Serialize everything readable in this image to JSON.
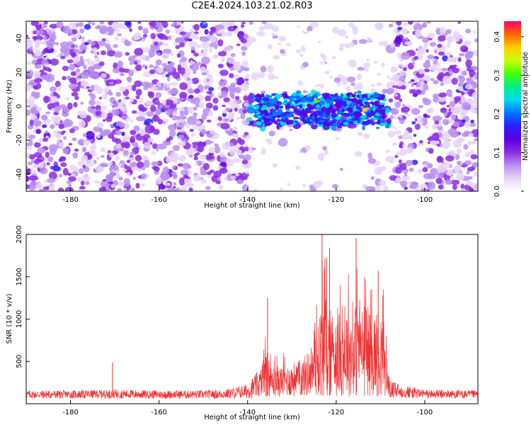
{
  "page": {
    "title": "C2E4.2024.103.21.02.R03"
  },
  "chart_data": [
    {
      "type": "heatmap",
      "xlabel": "Height of straight line (km)",
      "ylabel": "Frequency (Hz)",
      "xlim": [
        -190,
        -88
      ],
      "ylim": [
        -50,
        50
      ],
      "xticks": [
        -180,
        -160,
        -140,
        -120,
        -100
      ],
      "yticks": [
        -40,
        -20,
        0,
        20,
        40
      ],
      "colorbar": {
        "label": "Normalized spectral amplitude",
        "range": [
          0.0,
          0.44
        ],
        "ticks": [
          0.0,
          0.1,
          0.2,
          0.3,
          0.4
        ],
        "colors": [
          "#ffffff",
          "#e6d3f7",
          "#b98ef0",
          "#8a2be2",
          "#5b00e0",
          "#2a1fff",
          "#0077ff",
          "#00ddee",
          "#00ee88",
          "#44ff00",
          "#ccff00",
          "#ffcc00",
          "#ff6600",
          "#ff0066"
        ]
      },
      "regions": [
        {
          "x_range": [
            -190,
            -140
          ],
          "pattern": "broadband noise, amplitude ~0.05-0.12 across all frequencies"
        },
        {
          "x_range": [
            -140,
            -108
          ],
          "pattern": "signal band centred near 0 Hz, width ~ -12 to +8 Hz, amplitude up to ~0.4; sparse elsewhere"
        },
        {
          "x_range": [
            -108,
            -88
          ],
          "pattern": "broadband noise, amplitude ~0.05-0.12 across all frequencies"
        }
      ],
      "peaks": [
        {
          "x": -124.5,
          "y": 3,
          "value": 0.3
        },
        {
          "x": -113.5,
          "y": -2,
          "value": 0.38
        },
        {
          "x": -137.5,
          "y": -10,
          "value": 0.22
        },
        {
          "x": -133,
          "y": -4,
          "value": 0.2
        }
      ]
    },
    {
      "type": "line",
      "xlabel": "Height of straight line (km)",
      "ylabel": "SNR (10 * v/v)",
      "xlim": [
        -190,
        -88
      ],
      "ylim": [
        0,
        2000
      ],
      "xticks": [
        -180,
        -160,
        -140,
        -120,
        -100
      ],
      "yticks": [
        500,
        1000,
        1500,
        2000
      ],
      "color": "#ee3333",
      "x": [
        -190,
        -180,
        -170,
        -160,
        -150,
        -145,
        -140,
        -137,
        -136,
        -135,
        -132,
        -130,
        -128,
        -126,
        -124,
        -123,
        -122,
        -120,
        -118,
        -116,
        -115,
        -114,
        -112,
        -110,
        -109,
        -108,
        -100,
        -88
      ],
      "y": [
        150,
        150,
        160,
        150,
        150,
        160,
        220,
        400,
        1250,
        600,
        600,
        650,
        700,
        900,
        1300,
        2000,
        1700,
        1400,
        1650,
        1500,
        1950,
        1550,
        1500,
        1600,
        1300,
        250,
        160,
        150
      ],
      "peaks": [
        {
          "x": -170.5,
          "y": 490
        },
        {
          "x": -135.5,
          "y": 1250
        },
        {
          "x": -123.2,
          "y": 2000
        },
        {
          "x": -121.5,
          "y": 1840
        },
        {
          "x": -115.5,
          "y": 1960
        },
        {
          "x": -110.5,
          "y": 1570
        }
      ]
    }
  ]
}
